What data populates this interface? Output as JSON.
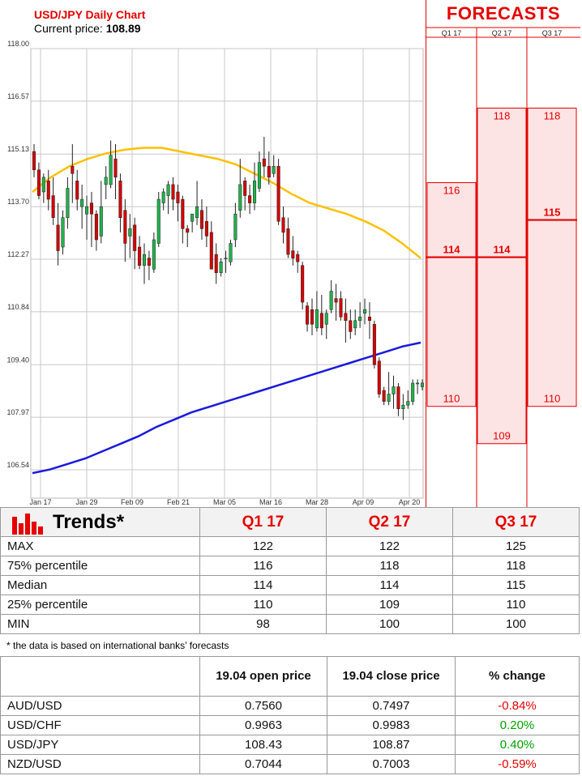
{
  "header": {
    "title": "USD/JPY Daily Chart",
    "price_label": "Current price:",
    "price_value": "108.89"
  },
  "chart_data": {
    "type": "candlestick",
    "y_ticks": [
      "118.00",
      "116.57",
      "115.13",
      "113.70",
      "112.27",
      "110.84",
      "109.40",
      "107.97",
      "106.54"
    ],
    "x_ticks": [
      "Jan 17",
      "Jan 29",
      "Feb 09",
      "Feb 21",
      "Mar 05",
      "Mar 16",
      "Mar 28",
      "Apr 09",
      "Apr 20"
    ],
    "ylim": [
      106.1,
      118.0
    ],
    "grid": true,
    "candles": [
      [
        115.2,
        114.7,
        115.4,
        114.5
      ],
      [
        114.7,
        114.0,
        114.9,
        113.9
      ],
      [
        114.1,
        114.5,
        114.6,
        113.8
      ],
      [
        114.4,
        113.9,
        114.7,
        113.6
      ],
      [
        114.0,
        113.4,
        114.5,
        113.2
      ],
      [
        113.2,
        112.5,
        113.8,
        112.1
      ],
      [
        112.6,
        113.4,
        113.6,
        112.4
      ],
      [
        113.4,
        114.2,
        114.5,
        113.1
      ],
      [
        114.8,
        114.6,
        115.4,
        113.8
      ],
      [
        114.4,
        113.9,
        114.7,
        113.6
      ],
      [
        113.7,
        113.9,
        114.3,
        113.1
      ],
      [
        113.5,
        113.7,
        114.0,
        112.8
      ],
      [
        113.8,
        113.5,
        114.1,
        112.6
      ],
      [
        113.5,
        112.8,
        113.6,
        112.5
      ],
      [
        112.9,
        113.7,
        114.4,
        112.7
      ],
      [
        114.3,
        114.5,
        114.8,
        113.9
      ],
      [
        114.3,
        115.1,
        115.5,
        114.2
      ],
      [
        115.0,
        114.5,
        115.4,
        113.9
      ],
      [
        114.4,
        113.4,
        114.6,
        113.0
      ],
      [
        113.6,
        112.7,
        113.9,
        112.2
      ],
      [
        112.9,
        113.1,
        113.5,
        112.3
      ],
      [
        113.2,
        112.5,
        113.4,
        112.0
      ],
      [
        112.6,
        112.1,
        112.9,
        112.0
      ],
      [
        112.1,
        112.4,
        112.7,
        111.6
      ],
      [
        112.3,
        112.1,
        112.5,
        111.7
      ],
      [
        112.0,
        112.8,
        113.0,
        111.9
      ],
      [
        112.7,
        113.9,
        114.1,
        112.6
      ],
      [
        113.8,
        114.1,
        114.2,
        113.6
      ],
      [
        114.0,
        114.3,
        114.4,
        113.5
      ],
      [
        114.3,
        113.9,
        114.5,
        113.6
      ],
      [
        114.1,
        113.8,
        114.3,
        113.3
      ],
      [
        113.9,
        113.1,
        114.0,
        112.7
      ],
      [
        113.1,
        113.0,
        113.2,
        112.6
      ],
      [
        113.3,
        113.5,
        113.5,
        113.0
      ],
      [
        113.4,
        113.7,
        114.4,
        113.2
      ],
      [
        113.6,
        113.1,
        113.9,
        112.8
      ],
      [
        113.3,
        112.9,
        113.7,
        112.6
      ],
      [
        113.0,
        112.0,
        113.3,
        112.0
      ],
      [
        112.4,
        111.9,
        112.7,
        111.6
      ],
      [
        111.9,
        112.2,
        112.3,
        111.8
      ],
      [
        112.3,
        112.3,
        112.5,
        111.9
      ],
      [
        112.2,
        112.7,
        112.8,
        112.1
      ],
      [
        112.8,
        113.5,
        113.8,
        112.6
      ],
      [
        113.6,
        114.3,
        115.0,
        113.4
      ],
      [
        114.4,
        114.0,
        114.5,
        113.6
      ],
      [
        114.0,
        113.8,
        114.3,
        113.5
      ],
      [
        113.8,
        114.4,
        114.9,
        113.6
      ],
      [
        114.2,
        114.9,
        115.2,
        114.1
      ],
      [
        115.0,
        114.8,
        115.6,
        114.5
      ],
      [
        114.8,
        114.5,
        115.2,
        114.3
      ],
      [
        114.6,
        114.8,
        115.1,
        114.5
      ],
      [
        114.8,
        113.3,
        115.0,
        113.2
      ],
      [
        113.4,
        113.0,
        113.7,
        112.7
      ],
      [
        113.1,
        112.4,
        113.4,
        112.3
      ],
      [
        112.5,
        112.3,
        112.9,
        112.1
      ],
      [
        112.4,
        112.2,
        112.5,
        111.9
      ],
      [
        112.1,
        111.1,
        112.2,
        110.9
      ],
      [
        111.0,
        110.5,
        111.1,
        110.3
      ],
      [
        110.9,
        110.5,
        111.2,
        110.2
      ],
      [
        110.4,
        110.9,
        111.4,
        110.3
      ],
      [
        110.8,
        110.4,
        111.3,
        110.2
      ],
      [
        110.5,
        110.8,
        110.9,
        110.1
      ],
      [
        110.9,
        111.4,
        111.7,
        110.8
      ],
      [
        111.2,
        111.1,
        111.6,
        110.6
      ],
      [
        111.2,
        110.7,
        111.4,
        110.6
      ],
      [
        110.8,
        110.6,
        111.2,
        110.0
      ],
      [
        110.6,
        110.3,
        110.9,
        110.1
      ],
      [
        110.4,
        110.6,
        110.9,
        110.2
      ],
      [
        110.6,
        110.7,
        111.1,
        110.4
      ],
      [
        110.8,
        110.9,
        111.2,
        110.5
      ],
      [
        110.7,
        110.6,
        111.1,
        110.1
      ],
      [
        110.5,
        109.4,
        110.6,
        109.3
      ],
      [
        109.5,
        108.6,
        109.6,
        108.5
      ],
      [
        108.7,
        108.4,
        108.8,
        108.3
      ],
      [
        108.4,
        108.6,
        109.2,
        108.3
      ],
      [
        108.6,
        108.8,
        109.1,
        108.2
      ],
      [
        108.8,
        108.2,
        108.9,
        108.0
      ],
      [
        108.2,
        108.3,
        108.6,
        107.9
      ],
      [
        108.3,
        108.4,
        108.7,
        108.2
      ],
      [
        108.4,
        108.9,
        109.0,
        108.3
      ],
      [
        108.9,
        108.9,
        109.0,
        108.6
      ],
      [
        108.8,
        108.9,
        109.0,
        108.7
      ]
    ],
    "series": [
      {
        "color": "#ffc000",
        "values": [
          114.1,
          114.5,
          114.8,
          115.0,
          115.15,
          115.25,
          115.3,
          115.3,
          115.2,
          115.1,
          115.0,
          114.85,
          114.6,
          114.35,
          114.05,
          113.8,
          113.65,
          113.5,
          113.3,
          113.05,
          112.7,
          112.3
        ]
      },
      {
        "color": "#1a1adc",
        "values": [
          106.45,
          106.55,
          106.7,
          106.85,
          107.05,
          107.25,
          107.45,
          107.7,
          107.9,
          108.1,
          108.25,
          108.4,
          108.55,
          108.7,
          108.85,
          109.0,
          109.15,
          109.3,
          109.45,
          109.6,
          109.75,
          109.9,
          110.0
        ]
      }
    ]
  },
  "forecasts": {
    "title": "FORECASTS",
    "ylim": [
      107.3,
      119.9
    ],
    "columns": [
      {
        "label": "Q1 17",
        "max": "116",
        "median": "114",
        "min": "110",
        "max_v": 116,
        "median_v": 114,
        "min_v": 110
      },
      {
        "label": "Q2 17",
        "max": "118",
        "median": "114",
        "min": "109",
        "max_v": 118,
        "median_v": 114,
        "min_v": 109
      },
      {
        "label": "Q3 17",
        "max": "118",
        "median": "115",
        "min": "110",
        "max_v": 118,
        "median_v": 115,
        "min_v": 110
      }
    ]
  },
  "trends": {
    "title": "Trends*",
    "headers": [
      "Q1 17",
      "Q2 17",
      "Q3 17"
    ],
    "rows": [
      {
        "label": "MAX",
        "values": [
          "122",
          "122",
          "125"
        ]
      },
      {
        "label": "75% percentile",
        "values": [
          "116",
          "118",
          "118"
        ]
      },
      {
        "label": "Median",
        "values": [
          "114",
          "114",
          "115"
        ]
      },
      {
        "label": "25% percentile",
        "values": [
          "110",
          "109",
          "110"
        ]
      },
      {
        "label": "MIN",
        "values": [
          "98",
          "100",
          "100"
        ]
      }
    ],
    "footnote": "* the data is based on international banks’ forecasts"
  },
  "fx": {
    "headers": [
      "19.04 open price",
      "19.04 close price",
      "% change"
    ],
    "rows": [
      {
        "pair": "AUD/USD",
        "open": "0.7560",
        "close": "0.7497",
        "change": "-0.84%",
        "dir": "neg"
      },
      {
        "pair": "USD/CHF",
        "open": "0.9963",
        "close": "0.9983",
        "change": "0.20%",
        "dir": "pos"
      },
      {
        "pair": "USD/JPY",
        "open": "108.43",
        "close": "108.87",
        "change": "0.40%",
        "dir": "pos"
      },
      {
        "pair": "NZD/USD",
        "open": "0.7044",
        "close": "0.7003",
        "change": "-0.59%",
        "dir": "neg"
      }
    ]
  },
  "colors": {
    "accent": "#e60000",
    "up": "#22b14c",
    "down": "#d40000",
    "ma_fast": "#ffc000",
    "ma_slow": "#1a1adc",
    "band": "#fde4e4"
  }
}
